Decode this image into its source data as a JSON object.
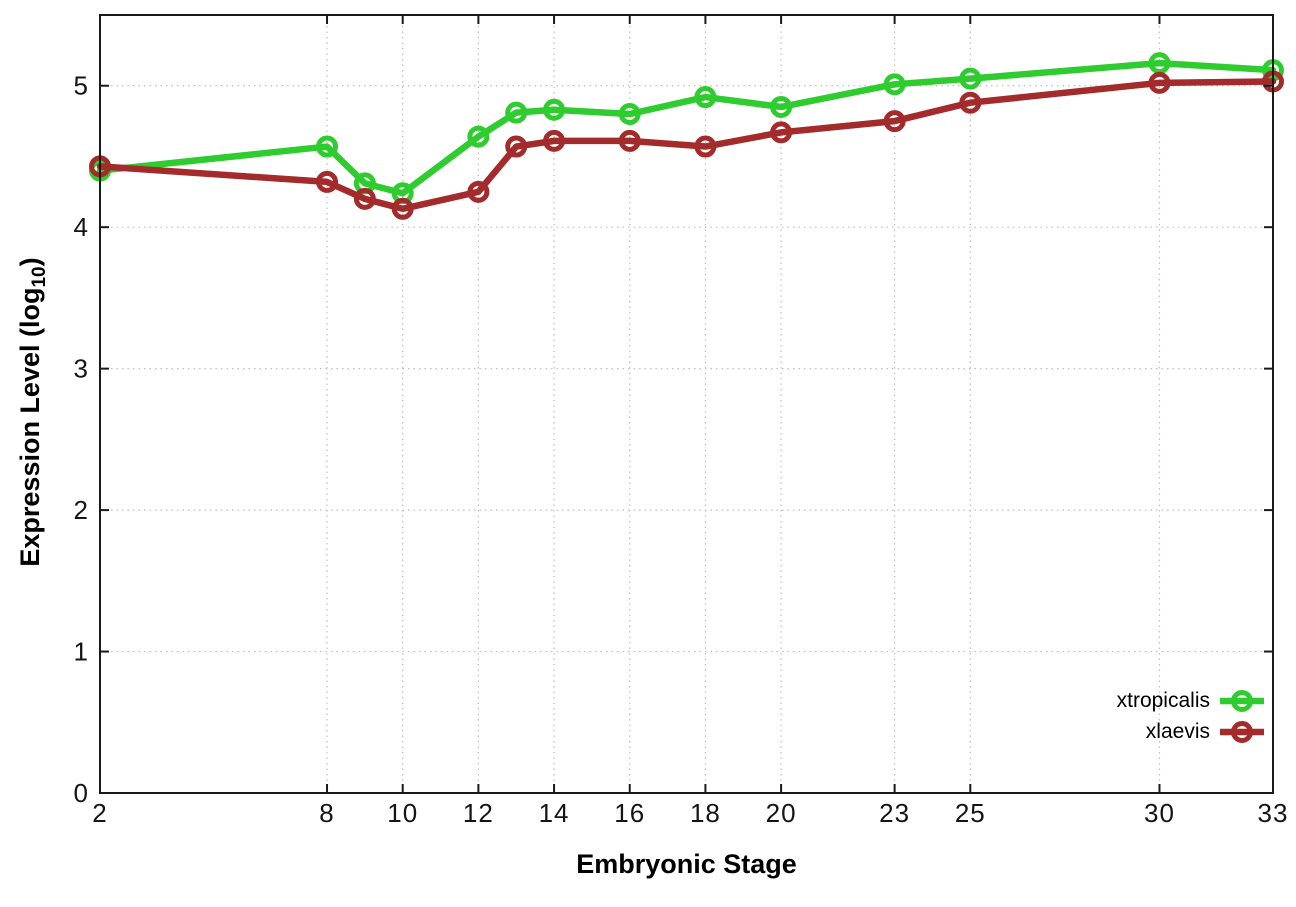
{
  "chart_data": {
    "type": "line",
    "title": "",
    "xlabel": "Embryonic Stage",
    "ylabel": "Expression Level (log10)",
    "ylabel_parts": {
      "prefix": "Expression Level (log",
      "sub": "10",
      "suffix": ")"
    },
    "x": [
      2,
      8,
      9,
      10,
      12,
      13,
      14,
      16,
      18,
      20,
      23,
      25,
      30,
      33
    ],
    "series": [
      {
        "name": "xtropicalis",
        "color": "#2ecc2e",
        "marker": "open-circle",
        "values": [
          4.4,
          4.57,
          4.31,
          4.24,
          4.64,
          4.81,
          4.83,
          4.8,
          4.92,
          4.85,
          5.01,
          5.05,
          5.16,
          5.11
        ]
      },
      {
        "name": "xlaevis",
        "color": "#a32b2b",
        "marker": "open-circle",
        "values": [
          4.43,
          4.32,
          4.2,
          4.13,
          4.25,
          4.57,
          4.61,
          4.61,
          4.57,
          4.67,
          4.75,
          4.88,
          5.02,
          5.03
        ]
      }
    ],
    "xticks": [
      2,
      8,
      10,
      12,
      14,
      16,
      18,
      20,
      23,
      25,
      30,
      33
    ],
    "yticks": [
      0,
      1,
      2,
      3,
      4,
      5
    ],
    "xlim": [
      2,
      33
    ],
    "ylim": [
      0,
      5.5
    ],
    "grid": true,
    "grid_style": "dotted",
    "grid_color": "#bfbfbf",
    "border_color": "#1a1a1a",
    "background_color": "#ffffff",
    "legend_position": "inside-bottom-right"
  }
}
